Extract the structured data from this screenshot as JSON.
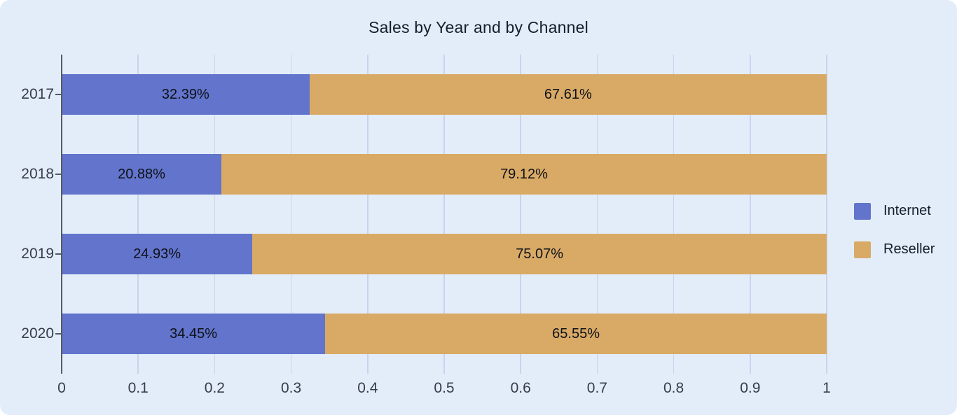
{
  "title": "Sales by Year and by Channel",
  "colors": {
    "background": "#e3edf9",
    "gridline": "#c8d3ef",
    "axis": "#555a64",
    "tick_text": "#363d49",
    "title_text": "#141e2c",
    "bar_label_text": "#0d1117",
    "internet": "#6274cb",
    "reseller": "#d9aa66"
  },
  "chart_data": {
    "type": "bar",
    "orientation": "horizontal",
    "stacked": true,
    "grid": true,
    "title": "Sales by Year and by Channel",
    "categories": [
      "2017",
      "2018",
      "2019",
      "2020"
    ],
    "series": [
      {
        "name": "Internet",
        "color": "#6274cb",
        "values": [
          0.3239,
          0.2088,
          0.2493,
          0.3445
        ],
        "labels": [
          "32.39%",
          "20.88%",
          "24.93%",
          "34.45%"
        ]
      },
      {
        "name": "Reseller",
        "color": "#d9aa66",
        "values": [
          0.6761,
          0.7912,
          0.7507,
          0.6555
        ],
        "labels": [
          "67.61%",
          "79.12%",
          "75.07%",
          "65.55%"
        ]
      }
    ],
    "xlim": [
      0,
      1
    ],
    "xticks": [
      0,
      0.1,
      0.2,
      0.3,
      0.4,
      0.5,
      0.6,
      0.7,
      0.8,
      0.9,
      1
    ],
    "xtick_labels": [
      "0",
      "0.1",
      "0.2",
      "0.3",
      "0.4",
      "0.5",
      "0.6",
      "0.7",
      "0.8",
      "0.9",
      "1"
    ],
    "legend": {
      "position": "right",
      "items": [
        "Internet",
        "Reseller"
      ]
    }
  }
}
